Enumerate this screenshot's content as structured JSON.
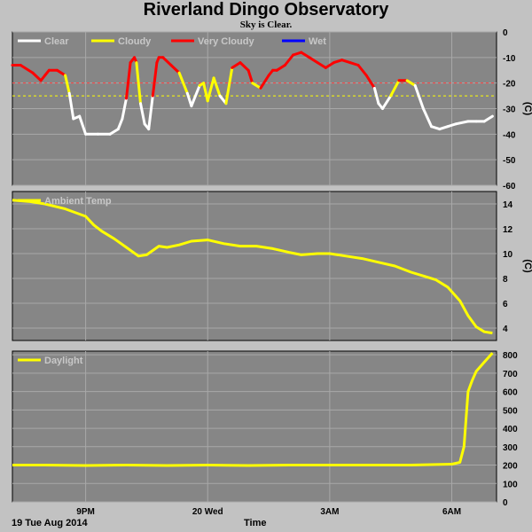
{
  "header": {
    "title": "Riverland Dingo Observatory",
    "subtitle": "Sky is Clear."
  },
  "footer": {
    "date": "19 Tue Aug 2014",
    "xlabel": "Time"
  },
  "chart_data": [
    {
      "type": "line",
      "panel": "sky",
      "legend": [
        {
          "name": "Clear",
          "color": "#ffffff"
        },
        {
          "name": "Cloudy",
          "color": "#ffff00"
        },
        {
          "name": "Very Cloudy",
          "color": "#ff0000"
        },
        {
          "name": "Wet",
          "color": "#0000ff"
        }
      ],
      "ylabel": "(C)",
      "ylim": [
        -60,
        0
      ],
      "yticks": [
        0,
        -10,
        -20,
        -30,
        -40,
        -50,
        -60
      ],
      "xlim": [
        19.2,
        31.1
      ],
      "xtick_positions": [
        21,
        24,
        27,
        30
      ],
      "xtick_labels": [
        "9PM",
        "20 Wed",
        "3AM",
        "6AM"
      ],
      "thresholds": [
        {
          "value": -20,
          "color": "#ff4040"
        },
        {
          "value": -25,
          "color": "#ffff00"
        }
      ],
      "series": [
        {
          "x": [
            19.2,
            19.4,
            19.7,
            19.9,
            20.0,
            20.1,
            20.3,
            20.5,
            20.6,
            20.7,
            20.85,
            21.0,
            21.3,
            21.6,
            21.8,
            21.9,
            22.0,
            22.1,
            22.2,
            22.25,
            22.35,
            22.45,
            22.55,
            22.65,
            22.75,
            22.8,
            22.9,
            23.1,
            23.3,
            23.5,
            23.6,
            23.8,
            23.9,
            24.0,
            24.15,
            24.3,
            24.45,
            24.6,
            24.8,
            25.0,
            25.1,
            25.3,
            25.5,
            25.6,
            25.7,
            25.9,
            26.1,
            26.3,
            26.5,
            26.7,
            26.9,
            27.1,
            27.3,
            27.5,
            27.7,
            27.9,
            28.1,
            28.2,
            28.3,
            28.5,
            28.7,
            28.9,
            29.1,
            29.3,
            29.5,
            29.7,
            29.9,
            30.1,
            30.4,
            30.6,
            30.8,
            31.0
          ],
          "y": [
            -13,
            -13,
            -16,
            -19,
            -17,
            -15,
            -15,
            -17,
            -24,
            -34,
            -33,
            -40,
            -40,
            -40,
            -38,
            -34,
            -26,
            -12,
            -10,
            -12,
            -28,
            -36,
            -38,
            -25,
            -12,
            -10,
            -10,
            -13,
            -16,
            -24,
            -29,
            -21,
            -20,
            -27,
            -18,
            -25,
            -28,
            -14,
            -12,
            -15,
            -20,
            -22,
            -17,
            -15,
            -15,
            -13,
            -9,
            -8,
            -10,
            -12,
            -14,
            -12,
            -11,
            -12,
            -13,
            -17,
            -22,
            -28,
            -30,
            -25,
            -19,
            -19,
            -21,
            -30,
            -37,
            -38,
            -37,
            -36,
            -35,
            -35,
            -35,
            -33
          ]
        }
      ]
    },
    {
      "type": "line",
      "panel": "ambient",
      "legend": [
        {
          "name": "Ambient Temp",
          "color": "#ffff00"
        }
      ],
      "ylabel": "(C)",
      "ylim": [
        3,
        15
      ],
      "yticks": [
        14,
        12,
        10,
        8,
        6,
        4
      ],
      "xlim": [
        19.2,
        31.1
      ],
      "xtick_positions": [
        21,
        24,
        27,
        30
      ],
      "series": [
        {
          "name": "Ambient Temp",
          "color": "#ffff00",
          "x": [
            19.2,
            19.6,
            20.0,
            20.5,
            21.0,
            21.2,
            21.4,
            21.7,
            22.0,
            22.3,
            22.5,
            22.8,
            23.0,
            23.3,
            23.6,
            24.0,
            24.4,
            24.8,
            25.2,
            25.6,
            26.0,
            26.3,
            26.7,
            27.0,
            27.4,
            27.8,
            28.2,
            28.6,
            29.0,
            29.3,
            29.6,
            29.9,
            30.2,
            30.4,
            30.6,
            30.8,
            31.0
          ],
          "y": [
            14.3,
            14.2,
            14.0,
            13.6,
            13.0,
            12.3,
            11.8,
            11.2,
            10.5,
            9.8,
            9.9,
            10.6,
            10.5,
            10.7,
            11.0,
            11.1,
            10.8,
            10.6,
            10.6,
            10.4,
            10.1,
            9.9,
            10.0,
            10.0,
            9.8,
            9.6,
            9.3,
            9.0,
            8.5,
            8.2,
            7.9,
            7.3,
            6.2,
            5.0,
            4.1,
            3.7,
            3.6
          ]
        }
      ]
    },
    {
      "type": "line",
      "panel": "daylight",
      "legend": [
        {
          "name": "Daylight",
          "color": "#ffff00"
        }
      ],
      "ylim": [
        0,
        820
      ],
      "yticks": [
        800,
        700,
        600,
        500,
        400,
        300,
        200,
        100,
        0
      ],
      "xlim": [
        19.2,
        31.1
      ],
      "xtick_positions": [
        21,
        24,
        27,
        30
      ],
      "series": [
        {
          "name": "Daylight",
          "color": "#ffff00",
          "x": [
            19.2,
            20.0,
            21.0,
            22.0,
            23.0,
            24.0,
            25.0,
            26.0,
            27.0,
            28.0,
            29.0,
            30.0,
            30.2,
            30.3,
            30.4,
            30.5,
            30.6,
            30.8,
            31.0
          ],
          "y": [
            200,
            200,
            198,
            200,
            198,
            200,
            198,
            200,
            200,
            200,
            200,
            205,
            215,
            300,
            600,
            660,
            710,
            760,
            810
          ]
        }
      ]
    }
  ]
}
